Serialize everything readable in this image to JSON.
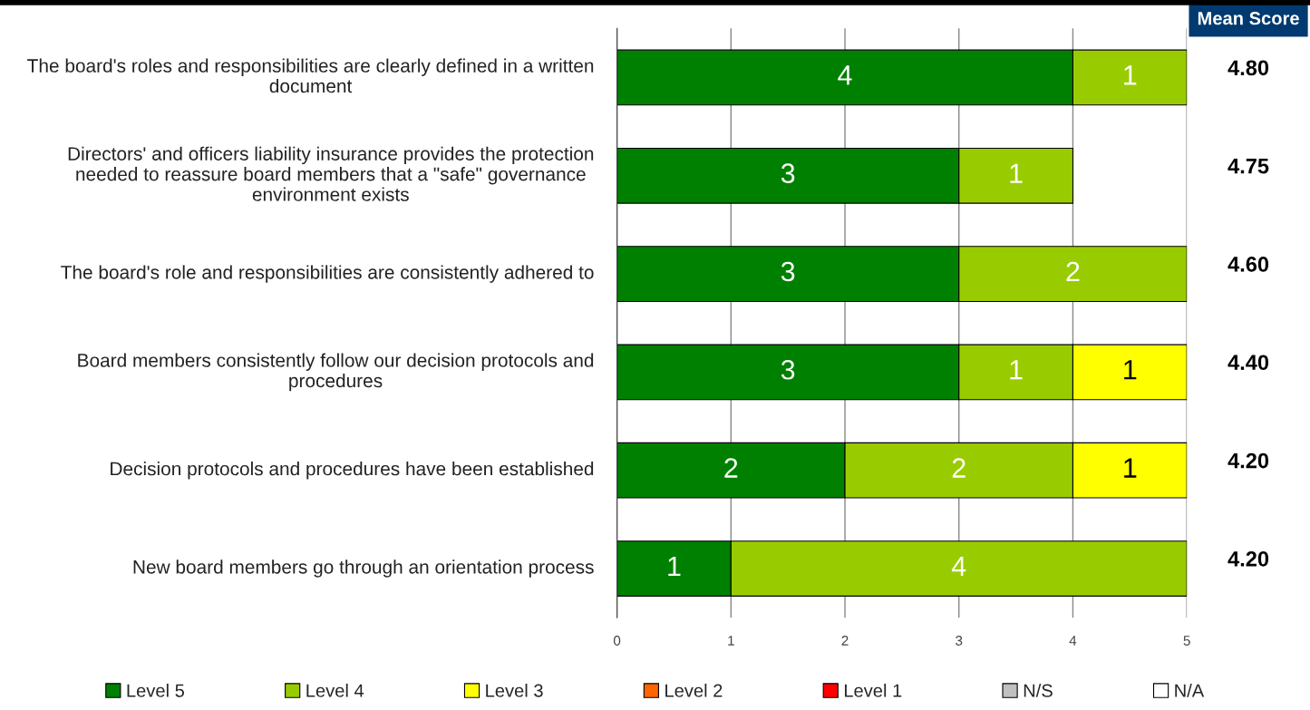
{
  "chart_data": {
    "type": "bar",
    "orientation": "horizontal",
    "stacked": true,
    "categories": [
      "The board's roles and responsibilities are clearly defined in a written document",
      "Directors' and officers liability insurance provides the protection needed to reassure board members that a \"safe\" governance environment exists",
      "The board's role and responsibilities are consistently adhered to",
      "Board members consistently follow our decision protocols and procedures",
      "Decision protocols and procedures have been established",
      "New board members go through an orientation process"
    ],
    "series": [
      {
        "name": "Level 5",
        "color": "#008000",
        "values": [
          4,
          3,
          3,
          3,
          2,
          1
        ]
      },
      {
        "name": "Level 4",
        "color": "#99cc00",
        "values": [
          1,
          1,
          2,
          1,
          2,
          4
        ]
      },
      {
        "name": "Level 3",
        "color": "#ffff00",
        "values": [
          null,
          null,
          null,
          1,
          1,
          null
        ]
      },
      {
        "name": "Level 2",
        "color": "#ff6600",
        "values": [
          null,
          null,
          null,
          null,
          null,
          null
        ]
      },
      {
        "name": "Level 1",
        "color": "#ff0000",
        "values": [
          null,
          null,
          null,
          null,
          null,
          null
        ]
      },
      {
        "name": "N/S",
        "color": "#c0c0c0",
        "values": [
          null,
          null,
          null,
          null,
          null,
          null
        ]
      },
      {
        "name": "N/A",
        "color": "#ffffff",
        "values": [
          null,
          null,
          null,
          null,
          null,
          null
        ]
      }
    ],
    "xlim": [
      0,
      5
    ],
    "xticks": [
      0,
      1,
      2,
      3,
      4,
      5
    ],
    "grid": "x",
    "legend": "bottom",
    "data_labels": true,
    "annotations": [
      "Mean Score",
      "4.80",
      "4.75",
      "4.60",
      "4.40",
      "4.20",
      "4.20"
    ]
  }
}
